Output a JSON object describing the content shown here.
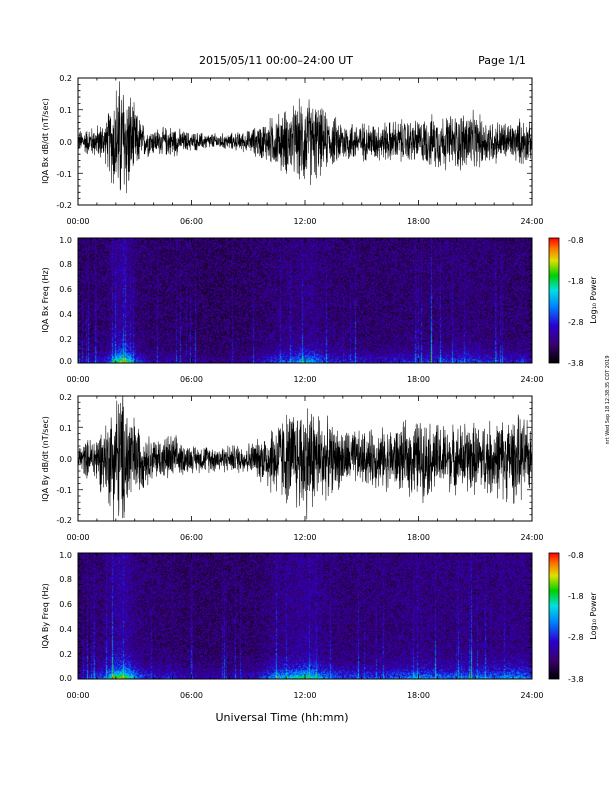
{
  "header": {
    "title": "2015/05/11  00:00–24:00 UT",
    "page": "Page 1/1"
  },
  "stamp": "nrt Wed Sep 18 12:38:35 CDT 2019",
  "x_axis_title": "Universal Time (hh:mm)",
  "colors": {
    "waveform": "#000000",
    "frame": "#000000",
    "background": "#ffffff"
  },
  "chart_data": [
    {
      "type": "line",
      "ylabel": "IQA Bx dB/dt (nT/sec)",
      "xlim": [
        "00:00",
        "24:00"
      ],
      "ylim": [
        -0.2,
        0.2
      ],
      "x_ticks": [
        "00:00",
        "06:00",
        "12:00",
        "18:00",
        "24:00"
      ],
      "y_ticks": [
        "-0.2",
        "-0.1",
        "0.0",
        "0.1",
        "0.2"
      ],
      "envelope": {
        "hours": [
          0,
          0.5,
          1,
          1.5,
          2,
          2.3,
          2.6,
          3,
          3.5,
          4,
          4.5,
          5,
          5.5,
          6,
          7,
          8,
          9,
          9.5,
          10,
          10.5,
          11,
          11.5,
          12,
          12.5,
          13,
          13.5,
          14,
          15,
          16,
          17,
          18,
          19,
          20,
          20.5,
          21,
          22,
          23,
          23.5,
          24
        ],
        "amplitude": [
          0.04,
          0.05,
          0.06,
          0.08,
          0.22,
          0.24,
          0.22,
          0.12,
          0.06,
          0.05,
          0.05,
          0.06,
          0.04,
          0.035,
          0.03,
          0.03,
          0.04,
          0.06,
          0.08,
          0.1,
          0.12,
          0.13,
          0.17,
          0.15,
          0.11,
          0.09,
          0.08,
          0.07,
          0.07,
          0.08,
          0.08,
          0.1,
          0.1,
          0.12,
          0.1,
          0.08,
          0.07,
          0.09,
          0.06
        ]
      }
    },
    {
      "type": "heatmap",
      "ylabel": "IQA Bx Freq (Hz)",
      "xlim": [
        "00:00",
        "24:00"
      ],
      "ylim": [
        0.0,
        1.0
      ],
      "x_ticks": [
        "00:00",
        "06:00",
        "12:00",
        "18:00",
        "24:00"
      ],
      "y_ticks": [
        "0.0",
        "0.2",
        "0.4",
        "0.6",
        "0.8",
        "1.0"
      ],
      "colorbar": {
        "label": "Log₁₀ Power",
        "range": [
          -3.8,
          -0.8
        ],
        "ticks": [
          "-0.8",
          "-1.8",
          "-2.8",
          "-3.8"
        ]
      }
    },
    {
      "type": "line",
      "ylabel": "IQA By dB/dt (nT/sec)",
      "xlim": [
        "00:00",
        "24:00"
      ],
      "ylim": [
        -0.2,
        0.2
      ],
      "x_ticks": [
        "00:00",
        "06:00",
        "12:00",
        "18:00",
        "24:00"
      ],
      "y_ticks": [
        "-0.2",
        "-0.1",
        "0.0",
        "0.1",
        "0.2"
      ],
      "envelope": {
        "hours": [
          0,
          0.5,
          1,
          1.5,
          2,
          2.3,
          2.6,
          3,
          3.5,
          4,
          4.5,
          5,
          5.5,
          6,
          7,
          8,
          9,
          9.5,
          10,
          10.5,
          11,
          11.5,
          12,
          12.5,
          13,
          13.5,
          14,
          15,
          16,
          17,
          18,
          19,
          20,
          20.5,
          21,
          22,
          23,
          23.5,
          24
        ],
        "amplitude": [
          0.05,
          0.07,
          0.1,
          0.14,
          0.25,
          0.26,
          0.24,
          0.15,
          0.1,
          0.08,
          0.08,
          0.09,
          0.06,
          0.05,
          0.05,
          0.05,
          0.06,
          0.07,
          0.12,
          0.15,
          0.17,
          0.19,
          0.22,
          0.2,
          0.15,
          0.12,
          0.11,
          0.1,
          0.11,
          0.12,
          0.15,
          0.13,
          0.12,
          0.14,
          0.13,
          0.14,
          0.16,
          0.15,
          0.12
        ]
      }
    },
    {
      "type": "heatmap",
      "ylabel": "IQA By Freq (Hz)",
      "xlim": [
        "00:00",
        "24:00"
      ],
      "ylim": [
        0.0,
        1.0
      ],
      "x_ticks": [
        "00:00",
        "06:00",
        "12:00",
        "18:00",
        "24:00"
      ],
      "y_ticks": [
        "0.0",
        "0.2",
        "0.4",
        "0.6",
        "0.8",
        "1.0"
      ],
      "colorbar": {
        "label": "Log₁₀ Power",
        "range": [
          -3.8,
          -0.8
        ],
        "ticks": [
          "-0.8",
          "-1.8",
          "-2.8",
          "-3.8"
        ]
      }
    }
  ]
}
